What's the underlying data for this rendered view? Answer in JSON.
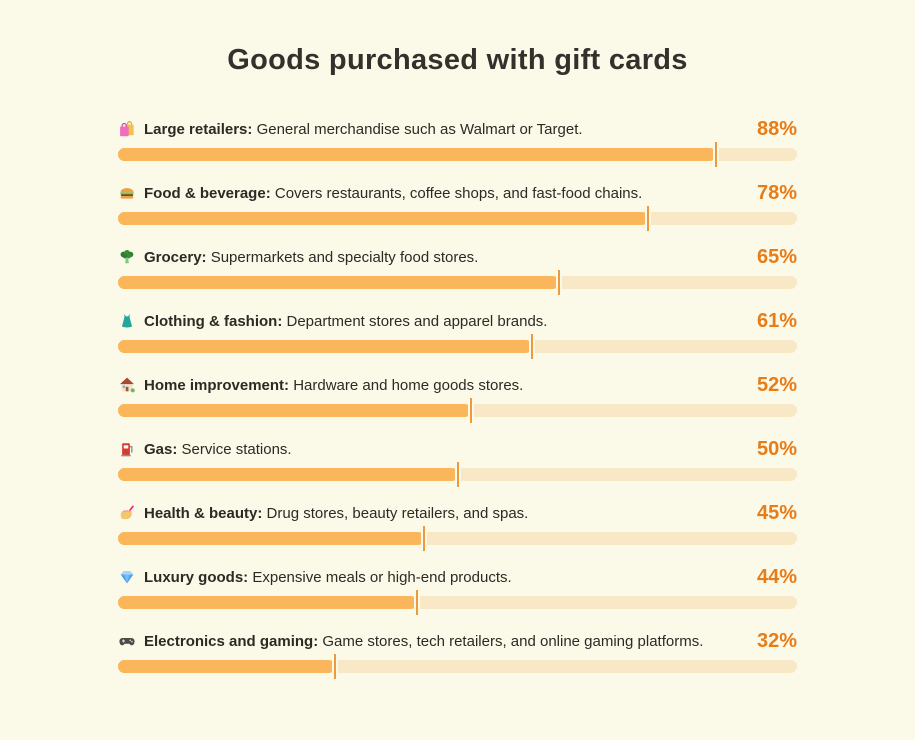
{
  "title": "Goods purchased with gift cards",
  "colors": {
    "background": "#FBFAE9",
    "title": "#33312C",
    "text": "#2B2A25",
    "bar_fill": "#FBB55B",
    "bar_track": "#F9E8C6",
    "bar_tick": "#EE9A3C",
    "percent": "#E87C17"
  },
  "chart_data": {
    "type": "bar",
    "orientation": "horizontal",
    "title": "Goods purchased with gift cards",
    "unit": "%",
    "value_range": [
      0,
      100
    ],
    "grid": false,
    "legend": false,
    "categories": [
      "Large retailers",
      "Food & beverage",
      "Grocery",
      "Clothing & fashion",
      "Home improvement",
      "Gas",
      "Health & beauty",
      "Luxury goods",
      "Electronics and gaming"
    ],
    "values": [
      88,
      78,
      65,
      61,
      52,
      50,
      45,
      44,
      32
    ],
    "rows": [
      {
        "icon": "shopping-bags-icon",
        "label": "Large retailers:",
        "description": "General merchandise such as Walmart or Target.",
        "value": 88,
        "percent": "88%"
      },
      {
        "icon": "hamburger-icon",
        "label": "Food & beverage:",
        "description": "Covers restaurants, coffee shops, and fast-food chains.",
        "value": 78,
        "percent": "78%"
      },
      {
        "icon": "broccoli-icon",
        "label": "Grocery:",
        "description": "Supermarkets and specialty food stores.",
        "value": 65,
        "percent": "65%"
      },
      {
        "icon": "dress-icon",
        "label": "Clothing & fashion:",
        "description": "Department stores and apparel brands.",
        "value": 61,
        "percent": "61%"
      },
      {
        "icon": "house-icon",
        "label": "Home improvement:",
        "description": "Hardware and home goods stores.",
        "value": 52,
        "percent": "52%"
      },
      {
        "icon": "fuel-pump-icon",
        "label": "Gas:",
        "description": "Service stations.",
        "value": 50,
        "percent": "50%"
      },
      {
        "icon": "nail-polish-icon",
        "label": "Health & beauty:",
        "description": "Drug stores, beauty retailers, and spas.",
        "value": 45,
        "percent": "45%"
      },
      {
        "icon": "gem-icon",
        "label": "Luxury goods:",
        "description": "Expensive meals or high-end products.",
        "value": 44,
        "percent": "44%"
      },
      {
        "icon": "game-controller-icon",
        "label": "Electronics and gaming:",
        "description": "Game stores, tech retailers, and online gaming platforms.",
        "value": 32,
        "percent": "32%"
      }
    ]
  }
}
